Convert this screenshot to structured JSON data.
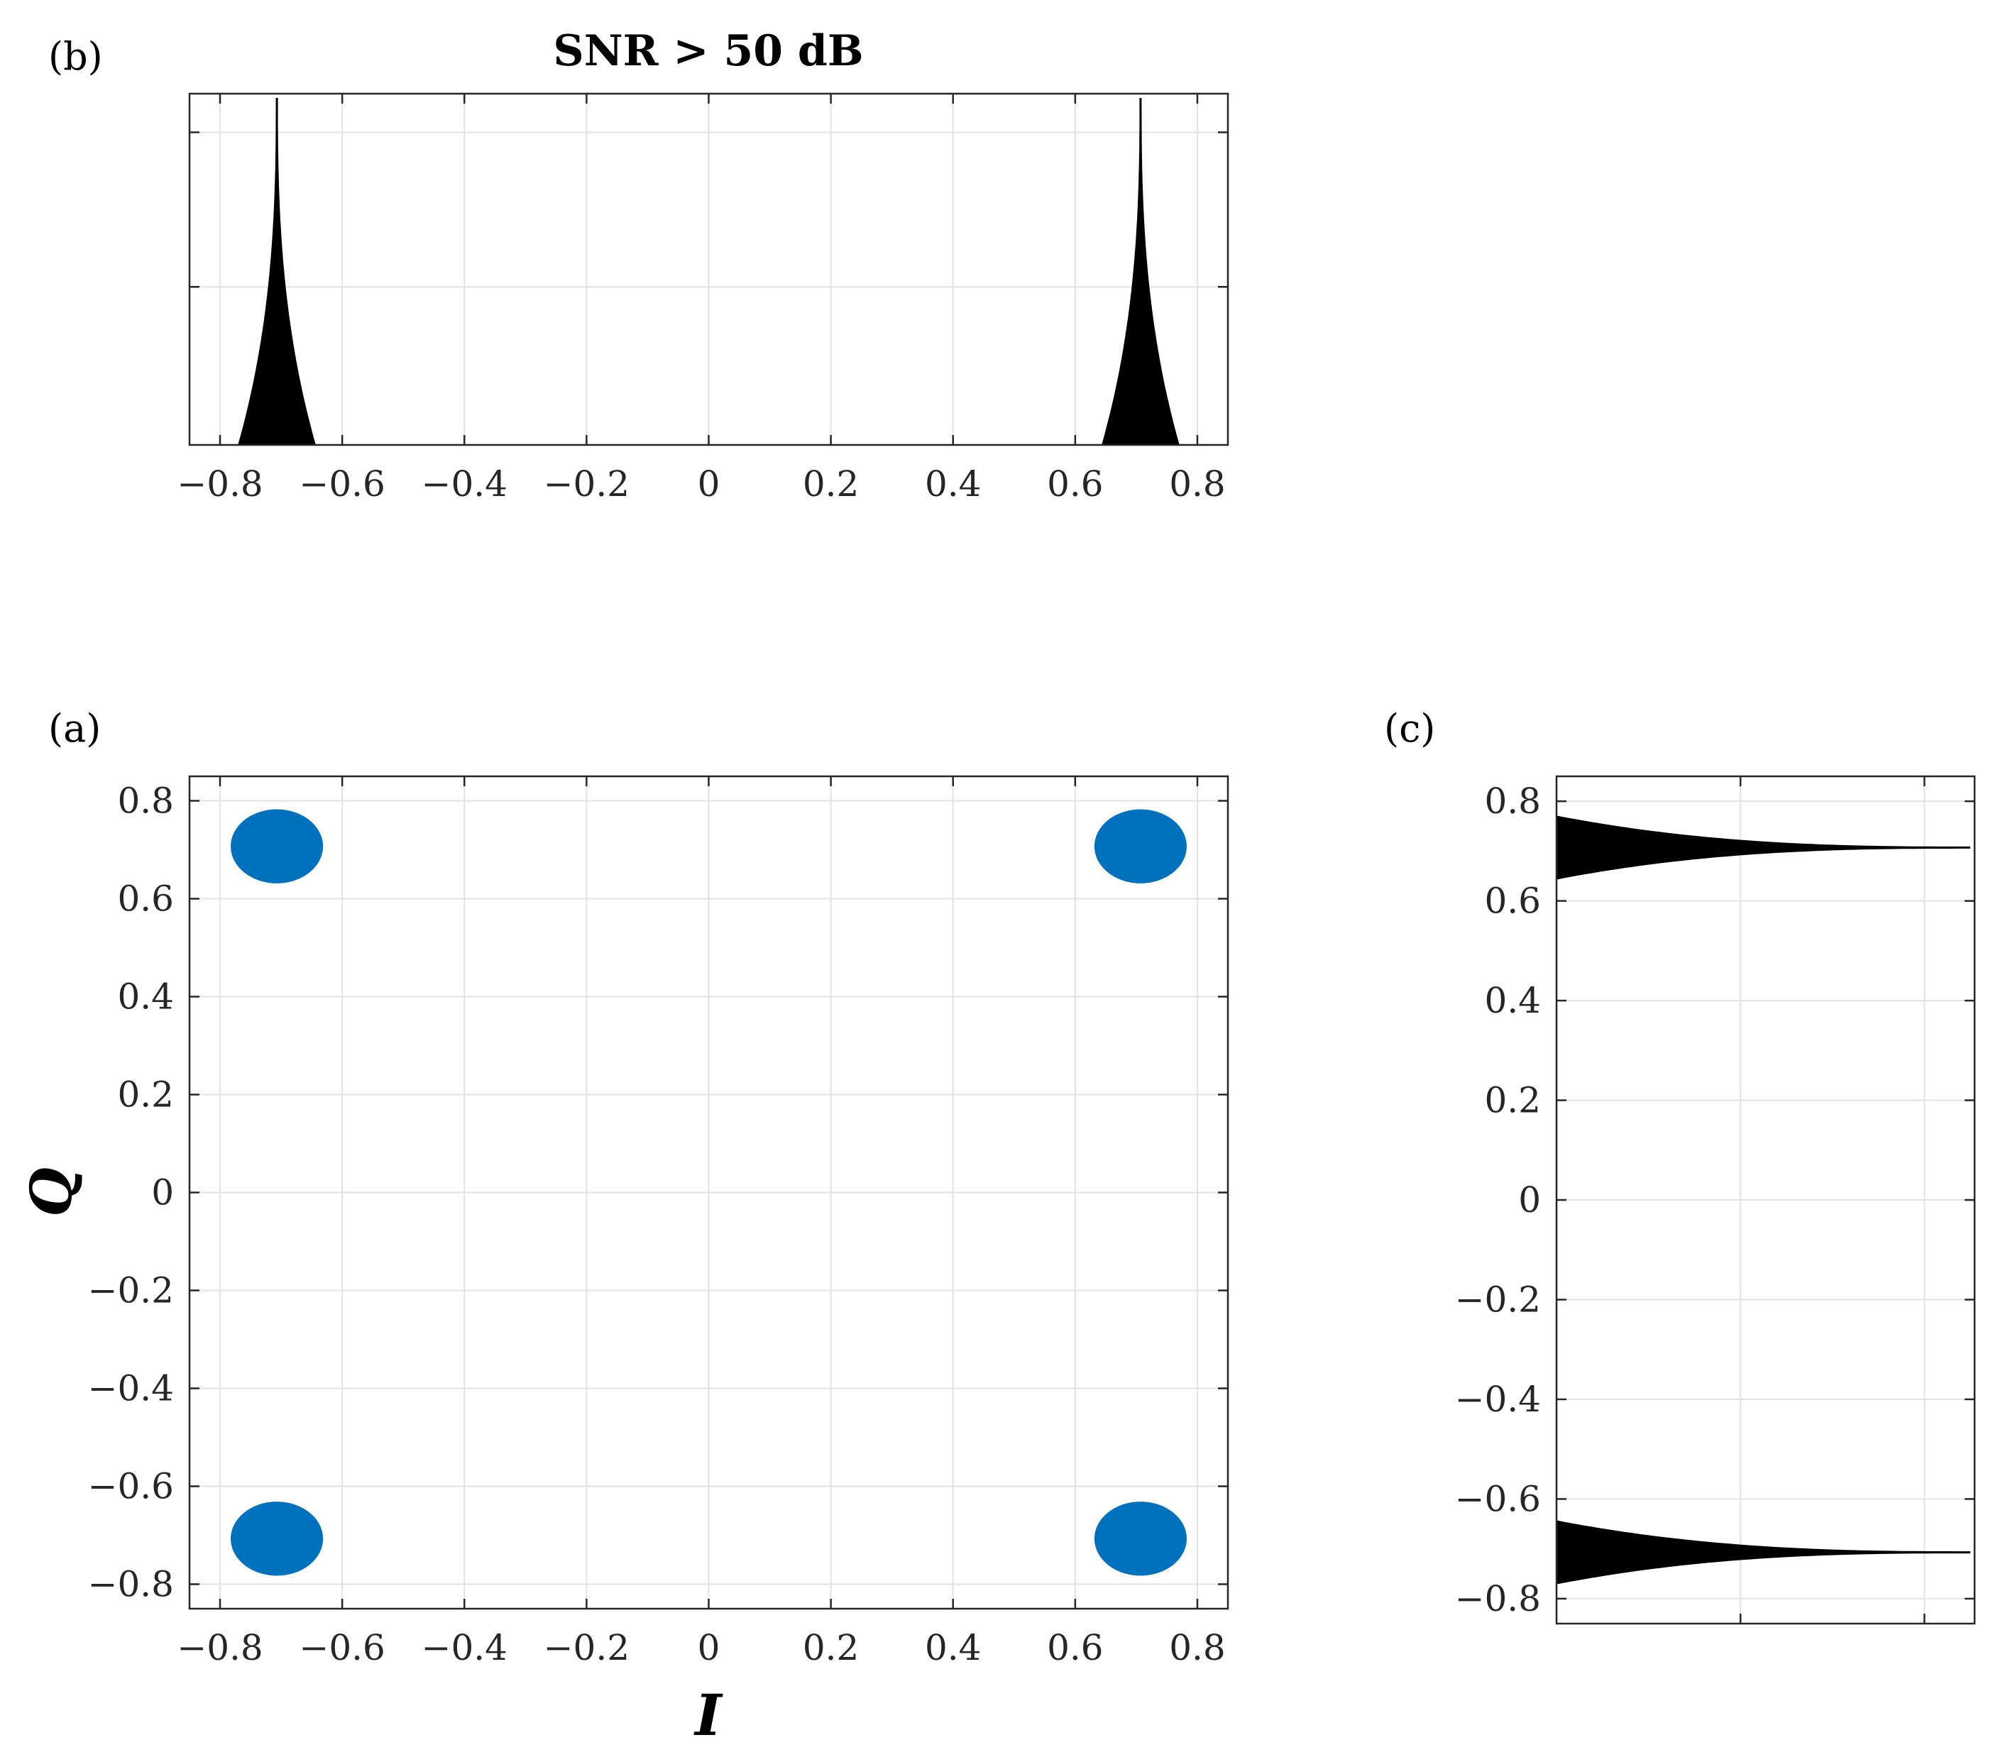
{
  "chart_data": [
    {
      "panel": "(a)",
      "type": "scatter",
      "title": "",
      "xlabel": "I",
      "ylabel": "Q",
      "xlim": [
        -0.85,
        0.85
      ],
      "ylim": [
        -0.85,
        0.85
      ],
      "xticks": [
        "−0.8",
        "−0.6",
        "−0.4",
        "−0.2",
        "0",
        "0.2",
        "0.4",
        "0.6",
        "0.8"
      ],
      "yticks": [
        "0.8",
        "0.6",
        "0.4",
        "0.2",
        "0",
        "−0.2",
        "−0.4",
        "−0.6",
        "−0.8"
      ],
      "grid": true,
      "points": [
        {
          "x": -0.707,
          "y": 0.707,
          "spread": 0.09
        },
        {
          "x": 0.707,
          "y": 0.707,
          "spread": 0.09
        },
        {
          "x": -0.707,
          "y": -0.707,
          "spread": 0.09
        },
        {
          "x": 0.707,
          "y": -0.707,
          "spread": 0.09
        }
      ],
      "color": "#0072bd"
    },
    {
      "panel": "(b)",
      "type": "area",
      "title": "SNR > 50 dB",
      "xlabel": "",
      "ylabel": "",
      "xlim": [
        -0.85,
        0.85
      ],
      "xticks": [
        "−0.8",
        "−0.6",
        "−0.4",
        "−0.2",
        "0",
        "0.2",
        "0.4",
        "0.6",
        "0.8"
      ],
      "grid": true,
      "peaks": [
        {
          "center": -0.707,
          "base_halfwidth": 0.062
        },
        {
          "center": 0.707,
          "base_halfwidth": 0.062
        }
      ],
      "color": "#000000"
    },
    {
      "panel": "(c)",
      "type": "area",
      "title": "",
      "xlabel": "",
      "ylabel": "",
      "ylim": [
        -0.85,
        0.85
      ],
      "yticks": [
        "0.8",
        "0.6",
        "0.4",
        "0.2",
        "0",
        "−0.2",
        "−0.4",
        "−0.6",
        "−0.8"
      ],
      "grid": true,
      "peaks": [
        {
          "center": 0.707,
          "base_halfwidth": 0.062
        },
        {
          "center": -0.707,
          "base_halfwidth": 0.062
        }
      ],
      "color": "#000000"
    }
  ],
  "labels": {
    "a": "(a)",
    "b": "(b)",
    "c": "(c)"
  }
}
